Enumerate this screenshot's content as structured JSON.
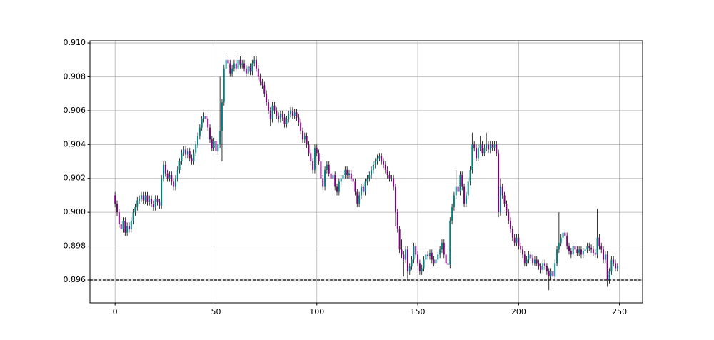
{
  "chart_data": {
    "type": "candlestick",
    "x": [
      0,
      1,
      2,
      3,
      4,
      5,
      6,
      7,
      8,
      9,
      10,
      11,
      12,
      13,
      14,
      15,
      16,
      17,
      18,
      19,
      20,
      21,
      22,
      23,
      24,
      25,
      26,
      27,
      28,
      29,
      30,
      31,
      32,
      33,
      34,
      35,
      36,
      37,
      38,
      39,
      40,
      41,
      42,
      43,
      44,
      45,
      46,
      47,
      48,
      49,
      50,
      51,
      52,
      53,
      54,
      55,
      56,
      57,
      58,
      59,
      60,
      61,
      62,
      63,
      64,
      65,
      66,
      67,
      68,
      69,
      70,
      71,
      72,
      73,
      74,
      75,
      76,
      77,
      78,
      79,
      80,
      81,
      82,
      83,
      84,
      85,
      86,
      87,
      88,
      89,
      90,
      91,
      92,
      93,
      94,
      95,
      96,
      97,
      98,
      99,
      100,
      101,
      102,
      103,
      104,
      105,
      106,
      107,
      108,
      109,
      110,
      111,
      112,
      113,
      114,
      115,
      116,
      117,
      118,
      119,
      120,
      121,
      122,
      123,
      124,
      125,
      126,
      127,
      128,
      129,
      130,
      131,
      132,
      133,
      134,
      135,
      136,
      137,
      138,
      139,
      140,
      141,
      142,
      143,
      144,
      145,
      146,
      147,
      148,
      149,
      150,
      151,
      152,
      153,
      154,
      155,
      156,
      157,
      158,
      159,
      160,
      161,
      162,
      163,
      164,
      165,
      166,
      167,
      168,
      169,
      170,
      171,
      172,
      173,
      174,
      175,
      176,
      177,
      178,
      179,
      180,
      181,
      182,
      183,
      184,
      185,
      186,
      187,
      188,
      189,
      190,
      191,
      192,
      193,
      194,
      195,
      196,
      197,
      198,
      199,
      200,
      201,
      202,
      203,
      204,
      205,
      206,
      207,
      208,
      209,
      210,
      211,
      212,
      213,
      214,
      215,
      216,
      217,
      218,
      219,
      220,
      221,
      222,
      223,
      224,
      225,
      226,
      227,
      228,
      229,
      230,
      231,
      232,
      233,
      234,
      235,
      236,
      237,
      238,
      239,
      240,
      241,
      242,
      243,
      244,
      245,
      246,
      247,
      248,
      249
    ],
    "open": [
      0.901,
      0.9005,
      0.9,
      0.8993,
      0.899,
      0.8995,
      0.8988,
      0.8992,
      0.899,
      0.8995,
      0.9,
      0.9003,
      0.9007,
      0.9008,
      0.901,
      0.9007,
      0.901,
      0.9006,
      0.9008,
      0.9005,
      0.9003,
      0.9008,
      0.9006,
      0.9004,
      0.902,
      0.9028,
      0.9023,
      0.902,
      0.9022,
      0.9018,
      0.9015,
      0.902,
      0.9025,
      0.903,
      0.9035,
      0.9037,
      0.9034,
      0.9036,
      0.9032,
      0.903,
      0.9035,
      0.904,
      0.9045,
      0.905,
      0.9055,
      0.9057,
      0.9055,
      0.905,
      0.9043,
      0.9038,
      0.9042,
      0.9036,
      0.904,
      0.9048,
      0.9065,
      0.9085,
      0.909,
      0.9088,
      0.9082,
      0.9085,
      0.9088,
      0.9085,
      0.909,
      0.9087,
      0.9088,
      0.9085,
      0.9082,
      0.9086,
      0.9083,
      0.9088,
      0.909,
      0.9085,
      0.908,
      0.9077,
      0.9075,
      0.907,
      0.9065,
      0.906,
      0.9055,
      0.9063,
      0.906,
      0.9057,
      0.9055,
      0.9058,
      0.9056,
      0.9052,
      0.9055,
      0.9058,
      0.906,
      0.9057,
      0.9059,
      0.9056,
      0.9053,
      0.9048,
      0.9043,
      0.9045,
      0.904,
      0.9035,
      0.903,
      0.9025,
      0.9038,
      0.9035,
      0.903,
      0.902,
      0.9015,
      0.9025,
      0.9028,
      0.9023,
      0.902,
      0.9022,
      0.9015,
      0.9012,
      0.9018,
      0.902,
      0.9022,
      0.9025,
      0.9022,
      0.9023,
      0.902,
      0.9018,
      0.9012,
      0.9005,
      0.901,
      0.9015,
      0.9012,
      0.9018,
      0.902,
      0.9022,
      0.9025,
      0.9028,
      0.903,
      0.9032,
      0.9033,
      0.903,
      0.9028,
      0.9025,
      0.9022,
      0.902,
      0.902,
      0.9015,
      0.9,
      0.899,
      0.8978,
      0.8975,
      0.8972,
      0.8978,
      0.8965,
      0.8968,
      0.8972,
      0.898,
      0.8975,
      0.897,
      0.8965,
      0.8967,
      0.8972,
      0.8975,
      0.8974,
      0.8976,
      0.8972,
      0.897,
      0.8972,
      0.8975,
      0.8978,
      0.8982,
      0.8975,
      0.897,
      0.8969,
      0.8995,
      0.9003,
      0.901,
      0.9015,
      0.9012,
      0.9022,
      0.9015,
      0.9005,
      0.901,
      0.9018,
      0.9025,
      0.904,
      0.9038,
      0.9032,
      0.9038,
      0.904,
      0.9035,
      0.9038,
      0.904,
      0.9037,
      0.904,
      0.9038,
      0.904,
      0.9035,
      0.9,
      0.9015,
      0.901,
      0.9005,
      0.9,
      0.8995,
      0.899,
      0.8985,
      0.8982,
      0.8985,
      0.898,
      0.8978,
      0.8975,
      0.897,
      0.8972,
      0.8975,
      0.8973,
      0.897,
      0.8972,
      0.897,
      0.8968,
      0.8966,
      0.897,
      0.8968,
      0.8965,
      0.8962,
      0.8965,
      0.8962,
      0.897,
      0.8978,
      0.8982,
      0.8985,
      0.8988,
      0.8986,
      0.898,
      0.8977,
      0.8975,
      0.898,
      0.8978,
      0.8976,
      0.8978,
      0.8975,
      0.8977,
      0.8978,
      0.898,
      0.8979,
      0.8978,
      0.8976,
      0.8975,
      0.8985,
      0.898,
      0.8978,
      0.8972,
      0.8975,
      0.896,
      0.8965,
      0.8972,
      0.897,
      0.8967
    ],
    "high": [
      0.9012,
      0.9007,
      0.9002,
      0.8995,
      0.8997,
      0.8997,
      0.8994,
      0.8994,
      0.8997,
      0.9002,
      0.9005,
      0.9009,
      0.901,
      0.9012,
      0.9012,
      0.9012,
      0.9012,
      0.901,
      0.901,
      0.9007,
      0.901,
      0.901,
      0.9008,
      0.9022,
      0.903,
      0.903,
      0.9025,
      0.9024,
      0.9024,
      0.902,
      0.9022,
      0.9027,
      0.9032,
      0.9037,
      0.9039,
      0.9039,
      0.9038,
      0.9038,
      0.9034,
      0.9037,
      0.9042,
      0.9047,
      0.9052,
      0.9057,
      0.9059,
      0.9059,
      0.9057,
      0.9052,
      0.9045,
      0.9044,
      0.9044,
      0.9042,
      0.908,
      0.9067,
      0.9087,
      0.9093,
      0.9092,
      0.909,
      0.9087,
      0.909,
      0.909,
      0.9092,
      0.9092,
      0.909,
      0.909,
      0.9087,
      0.9088,
      0.9088,
      0.909,
      0.9092,
      0.9092,
      0.9087,
      0.9082,
      0.9079,
      0.9077,
      0.9072,
      0.9067,
      0.9062,
      0.9065,
      0.9065,
      0.9062,
      0.9059,
      0.906,
      0.906,
      0.9058,
      0.9057,
      0.906,
      0.9062,
      0.9062,
      0.9061,
      0.9061,
      0.9058,
      0.9055,
      0.905,
      0.9047,
      0.9047,
      0.9042,
      0.9037,
      0.9032,
      0.904,
      0.904,
      0.9037,
      0.9032,
      0.9022,
      0.9027,
      0.903,
      0.903,
      0.9025,
      0.9024,
      0.9024,
      0.9017,
      0.902,
      0.9022,
      0.9024,
      0.9027,
      0.9027,
      0.9025,
      0.9025,
      0.9022,
      0.902,
      0.9014,
      0.9012,
      0.9017,
      0.9017,
      0.902,
      0.9022,
      0.9024,
      0.9027,
      0.903,
      0.9032,
      0.9034,
      0.9035,
      0.9035,
      0.9032,
      0.903,
      0.9027,
      0.9024,
      0.9022,
      0.9022,
      0.9017,
      0.9002,
      0.8992,
      0.8984,
      0.8977,
      0.898,
      0.898,
      0.897,
      0.8974,
      0.8982,
      0.8982,
      0.8977,
      0.8972,
      0.8969,
      0.8974,
      0.8977,
      0.8977,
      0.8978,
      0.8978,
      0.8974,
      0.8974,
      0.8977,
      0.898,
      0.8984,
      0.8984,
      0.8977,
      0.8972,
      0.8997,
      0.9005,
      0.9012,
      0.9025,
      0.9017,
      0.9024,
      0.9024,
      0.9017,
      0.9012,
      0.902,
      0.9027,
      0.9047,
      0.9042,
      0.904,
      0.904,
      0.9045,
      0.9042,
      0.904,
      0.9047,
      0.9042,
      0.9042,
      0.9042,
      0.9042,
      0.9042,
      0.9037,
      0.902,
      0.9017,
      0.9012,
      0.9007,
      0.9002,
      0.8997,
      0.8992,
      0.8987,
      0.8987,
      0.8987,
      0.8982,
      0.898,
      0.8977,
      0.8974,
      0.8977,
      0.8977,
      0.8975,
      0.8974,
      0.8974,
      0.8972,
      0.897,
      0.8972,
      0.8972,
      0.897,
      0.8967,
      0.8967,
      0.8967,
      0.8972,
      0.898,
      0.9,
      0.8987,
      0.899,
      0.899,
      0.8988,
      0.8982,
      0.8979,
      0.8982,
      0.8982,
      0.898,
      0.898,
      0.898,
      0.8979,
      0.898,
      0.8982,
      0.8982,
      0.8981,
      0.898,
      0.8978,
      0.9002,
      0.8987,
      0.8982,
      0.898,
      0.8977,
      0.8977,
      0.8967,
      0.8974,
      0.8974,
      0.8972,
      0.897
    ],
    "low": [
      0.9003,
      0.8998,
      0.8991,
      0.8988,
      0.8988,
      0.8986,
      0.8986,
      0.8988,
      0.8988,
      0.8993,
      0.8998,
      0.9001,
      0.9005,
      0.9006,
      0.9005,
      0.9005,
      0.9004,
      0.9004,
      0.9003,
      0.9001,
      0.9001,
      0.9004,
      0.9002,
      0.9002,
      0.9018,
      0.9021,
      0.9018,
      0.9018,
      0.9016,
      0.9013,
      0.9013,
      0.9018,
      0.9023,
      0.9028,
      0.9033,
      0.9032,
      0.9032,
      0.903,
      0.9028,
      0.9028,
      0.9033,
      0.9038,
      0.9043,
      0.9048,
      0.9053,
      0.9053,
      0.9048,
      0.9041,
      0.9036,
      0.9036,
      0.9034,
      0.9034,
      0.9038,
      0.903,
      0.9063,
      0.9083,
      0.9086,
      0.908,
      0.908,
      0.9083,
      0.9083,
      0.9083,
      0.9085,
      0.9085,
      0.9083,
      0.908,
      0.908,
      0.9081,
      0.9081,
      0.9086,
      0.9083,
      0.9078,
      0.9075,
      0.9073,
      0.9068,
      0.9063,
      0.9058,
      0.9051,
      0.9053,
      0.9058,
      0.9055,
      0.9053,
      0.9053,
      0.9054,
      0.905,
      0.905,
      0.9053,
      0.9056,
      0.9055,
      0.9055,
      0.9054,
      0.9051,
      0.9046,
      0.9041,
      0.9041,
      0.9038,
      0.9033,
      0.9028,
      0.9023,
      0.9023,
      0.9033,
      0.9028,
      0.9018,
      0.9013,
      0.9013,
      0.9023,
      0.9021,
      0.9018,
      0.9018,
      0.9013,
      0.901,
      0.901,
      0.9016,
      0.9018,
      0.902,
      0.902,
      0.902,
      0.9018,
      0.9016,
      0.901,
      0.9003,
      0.9003,
      0.9008,
      0.901,
      0.901,
      0.9016,
      0.9018,
      0.902,
      0.9023,
      0.9026,
      0.9028,
      0.903,
      0.9028,
      0.9026,
      0.9023,
      0.902,
      0.9018,
      0.9018,
      0.9013,
      0.8992,
      0.8988,
      0.8976,
      0.8973,
      0.8962,
      0.897,
      0.896,
      0.8963,
      0.8966,
      0.897,
      0.8973,
      0.8968,
      0.8963,
      0.8963,
      0.8965,
      0.897,
      0.8972,
      0.8972,
      0.897,
      0.8968,
      0.8968,
      0.897,
      0.8973,
      0.8976,
      0.8973,
      0.8968,
      0.8967,
      0.8967,
      0.8993,
      0.9001,
      0.9008,
      0.901,
      0.901,
      0.9013,
      0.9003,
      0.9003,
      0.9008,
      0.9016,
      0.9023,
      0.9036,
      0.903,
      0.903,
      0.9036,
      0.9033,
      0.9033,
      0.9036,
      0.9035,
      0.9035,
      0.9036,
      0.9036,
      0.9033,
      0.8997,
      0.8998,
      0.9008,
      0.9003,
      0.8998,
      0.8993,
      0.8988,
      0.8983,
      0.898,
      0.898,
      0.8978,
      0.8976,
      0.8973,
      0.8968,
      0.8968,
      0.897,
      0.8971,
      0.8968,
      0.8968,
      0.8968,
      0.8966,
      0.8964,
      0.8964,
      0.8966,
      0.8963,
      0.8954,
      0.896,
      0.8956,
      0.896,
      0.8968,
      0.8976,
      0.898,
      0.8983,
      0.8984,
      0.8978,
      0.8975,
      0.8973,
      0.8973,
      0.8976,
      0.8974,
      0.8974,
      0.8973,
      0.8973,
      0.8975,
      0.8976,
      0.8977,
      0.8976,
      0.8974,
      0.8973,
      0.8973,
      0.8978,
      0.8976,
      0.897,
      0.897,
      0.8956,
      0.8958,
      0.8963,
      0.8968,
      0.8965,
      0.8965
    ],
    "close": [
      0.9005,
      0.9,
      0.8993,
      0.899,
      0.8995,
      0.8988,
      0.8992,
      0.899,
      0.8995,
      0.9,
      0.9003,
      0.9007,
      0.9008,
      0.901,
      0.9007,
      0.901,
      0.9006,
      0.9008,
      0.9005,
      0.9003,
      0.9008,
      0.9006,
      0.9004,
      0.902,
      0.9028,
      0.9023,
      0.902,
      0.9022,
      0.9018,
      0.9015,
      0.902,
      0.9025,
      0.903,
      0.9035,
      0.9037,
      0.9034,
      0.9036,
      0.9032,
      0.903,
      0.9035,
      0.904,
      0.9045,
      0.905,
      0.9055,
      0.9057,
      0.9055,
      0.905,
      0.9043,
      0.9038,
      0.9042,
      0.9036,
      0.904,
      0.9048,
      0.9065,
      0.9085,
      0.909,
      0.9088,
      0.9082,
      0.9085,
      0.9088,
      0.9085,
      0.909,
      0.9087,
      0.9088,
      0.9085,
      0.9082,
      0.9086,
      0.9083,
      0.9088,
      0.909,
      0.9085,
      0.908,
      0.9077,
      0.9075,
      0.907,
      0.9065,
      0.906,
      0.9055,
      0.9063,
      0.906,
      0.9057,
      0.9055,
      0.9058,
      0.9056,
      0.9052,
      0.9055,
      0.9058,
      0.906,
      0.9057,
      0.9059,
      0.9056,
      0.9053,
      0.9048,
      0.9043,
      0.9045,
      0.904,
      0.9035,
      0.903,
      0.9025,
      0.9038,
      0.9035,
      0.903,
      0.902,
      0.9015,
      0.9025,
      0.9028,
      0.9023,
      0.902,
      0.9022,
      0.9015,
      0.9012,
      0.9018,
      0.902,
      0.9022,
      0.9025,
      0.9022,
      0.9023,
      0.902,
      0.9018,
      0.9012,
      0.9005,
      0.901,
      0.9015,
      0.9012,
      0.9018,
      0.902,
      0.9022,
      0.9025,
      0.9028,
      0.903,
      0.9032,
      0.9033,
      0.903,
      0.9028,
      0.9025,
      0.9022,
      0.902,
      0.902,
      0.9015,
      0.9,
      0.899,
      0.8978,
      0.8975,
      0.8972,
      0.8978,
      0.8965,
      0.8968,
      0.8972,
      0.898,
      0.8975,
      0.897,
      0.8965,
      0.8967,
      0.8972,
      0.8975,
      0.8974,
      0.8976,
      0.8972,
      0.897,
      0.8972,
      0.8975,
      0.8978,
      0.8982,
      0.8975,
      0.897,
      0.8969,
      0.8995,
      0.9003,
      0.901,
      0.9015,
      0.9012,
      0.9022,
      0.9015,
      0.9005,
      0.901,
      0.9018,
      0.9025,
      0.904,
      0.9038,
      0.9032,
      0.9038,
      0.904,
      0.9035,
      0.9038,
      0.904,
      0.9037,
      0.904,
      0.9038,
      0.904,
      0.9035,
      0.9,
      0.9015,
      0.901,
      0.9005,
      0.9,
      0.8995,
      0.899,
      0.8985,
      0.8982,
      0.8985,
      0.898,
      0.8978,
      0.8975,
      0.897,
      0.8972,
      0.8975,
      0.8973,
      0.897,
      0.8972,
      0.897,
      0.8968,
      0.8966,
      0.897,
      0.8968,
      0.8965,
      0.8962,
      0.8965,
      0.8962,
      0.897,
      0.8978,
      0.8982,
      0.8985,
      0.8988,
      0.8986,
      0.898,
      0.8977,
      0.8975,
      0.898,
      0.8978,
      0.8976,
      0.8978,
      0.8975,
      0.8977,
      0.8978,
      0.898,
      0.8979,
      0.8978,
      0.8976,
      0.8975,
      0.8985,
      0.898,
      0.8978,
      0.8972,
      0.8975,
      0.896,
      0.8965,
      0.8972,
      0.897,
      0.8967,
      0.8968
    ],
    "up_color": "#008080",
    "down_color": "#800080",
    "wick_color": "#000000",
    "hline": {
      "value": 0.896,
      "color": "#000000",
      "style": "dashed"
    },
    "xlim": [
      -12.45,
      261.45
    ],
    "ylim": [
      0.89465,
      0.91013
    ],
    "xticks": [
      0,
      50,
      100,
      150,
      200,
      250
    ],
    "yticks": [
      0.896,
      0.898,
      {
        "value": 0.9,
        "label": "0.900"
      },
      0.902,
      0.904,
      0.906,
      0.908,
      {
        "value": 0.91,
        "label": "0.910"
      }
    ],
    "grid": true
  }
}
